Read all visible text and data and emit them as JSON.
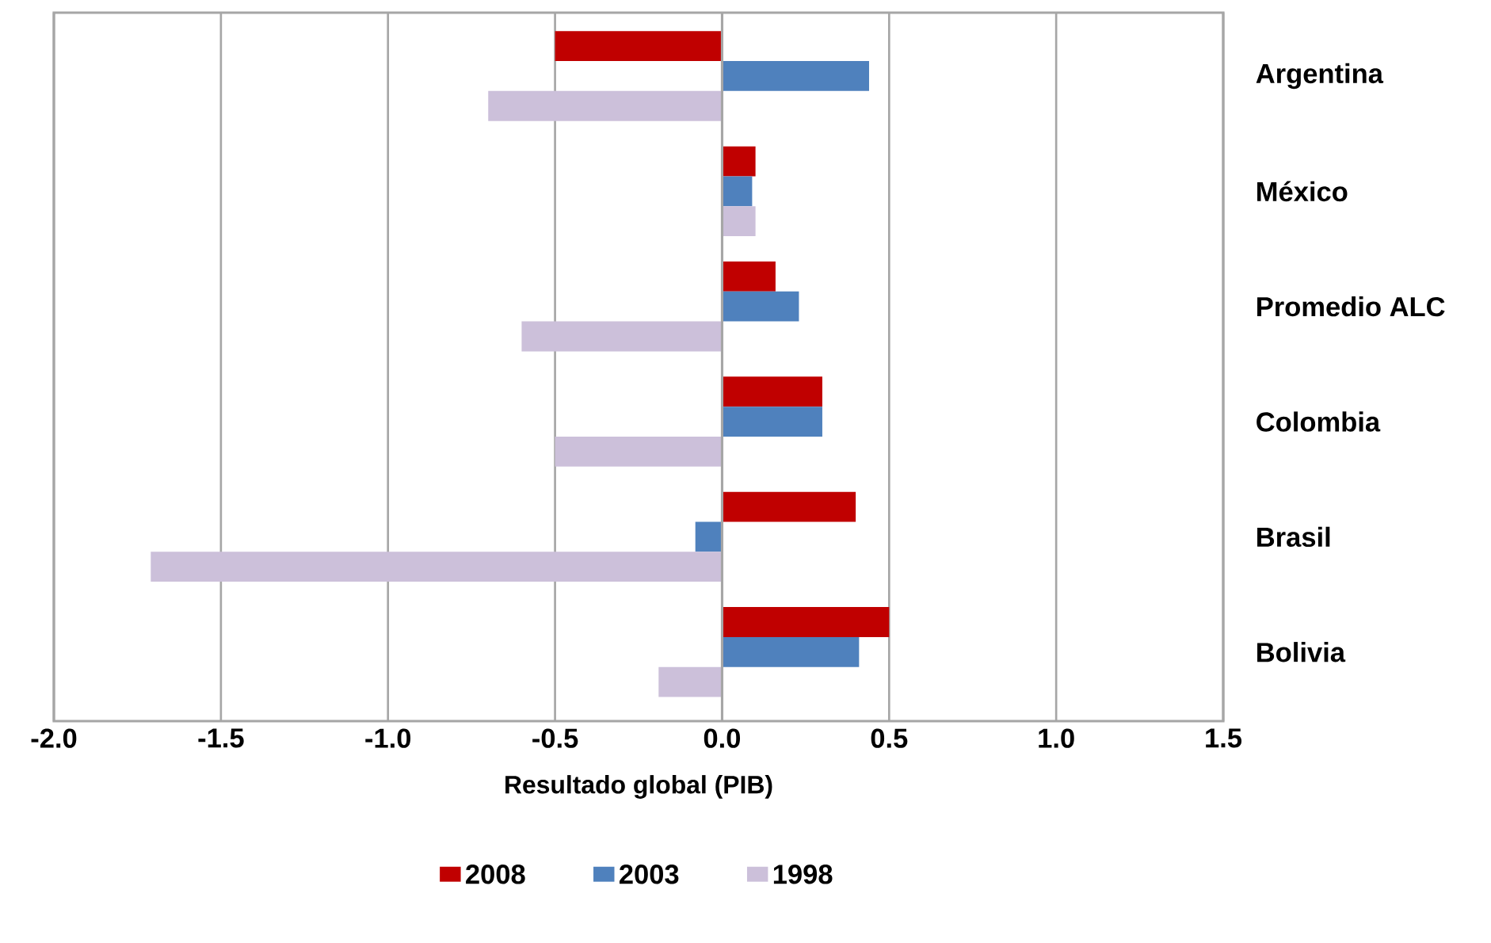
{
  "chart_data": {
    "type": "bar",
    "orientation": "horizontal",
    "xlabel": "Resultado global (PIB)",
    "categories": [
      "Argentina",
      "México",
      "Promedio ALC",
      "Colombia",
      "Brasil",
      "Bolivia"
    ],
    "series": [
      {
        "name": "2008",
        "color": "#c00000",
        "values": [
          -0.5,
          0.1,
          0.16,
          0.3,
          0.4,
          0.5
        ]
      },
      {
        "name": "2003",
        "color": "#4f81bd",
        "values": [
          0.44,
          0.09,
          0.23,
          0.3,
          -0.08,
          0.41
        ]
      },
      {
        "name": "1998",
        "color": "#ccc0da",
        "values": [
          -0.7,
          0.1,
          -0.6,
          -0.5,
          -1.71,
          -0.19
        ]
      }
    ],
    "xlim": [
      -2,
      1.5
    ],
    "xticks": [
      {
        "value": -2,
        "label": "-2.0"
      },
      {
        "value": -1.5,
        "label": "-1.5"
      },
      {
        "value": -1,
        "label": "-1.0"
      },
      {
        "value": -0.5,
        "label": "-0.5"
      },
      {
        "value": 0,
        "label": "0.0"
      },
      {
        "value": 0.5,
        "label": "0.5"
      },
      {
        "value": 1,
        "label": "1.0"
      },
      {
        "value": 1.5,
        "label": "1.5"
      }
    ],
    "grid": "x",
    "legend": "bottom"
  }
}
